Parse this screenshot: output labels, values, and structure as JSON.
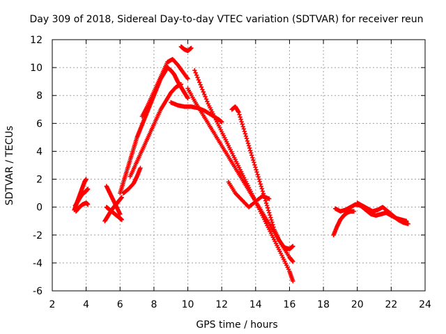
{
  "chart_data": {
    "type": "scatter",
    "title": "Day 309 of 2018, Sidereal Day-to-day VTEC variation (SDTVAR) for receiver reun",
    "xlabel": "GPS time / hours",
    "ylabel": "SDTVAR / TECUs",
    "xlim": [
      2,
      24
    ],
    "ylim": [
      -6,
      12
    ],
    "xticks": [
      "2",
      "4",
      "6",
      "8",
      "10",
      "12",
      "14",
      "16",
      "18",
      "20",
      "22",
      "24"
    ],
    "yticks": [
      "-6",
      "-4",
      "-2",
      "0",
      "2",
      "4",
      "6",
      "8",
      "10",
      "12"
    ],
    "grid": true,
    "marker": "+",
    "color": "#ff0000",
    "series": [
      {
        "name": "seg-a",
        "x": [
          3.3,
          3.45,
          3.6,
          3.75,
          3.9,
          4.0
        ],
        "y": [
          -0.2,
          0.3,
          0.8,
          1.3,
          1.8,
          2.0
        ]
      },
      {
        "name": "seg-b",
        "x": [
          3.35,
          3.55,
          3.75,
          3.95,
          4.1
        ],
        "y": [
          0.1,
          0.5,
          0.9,
          1.1,
          1.3
        ]
      },
      {
        "name": "seg-c",
        "x": [
          3.4,
          3.6,
          3.8,
          4.0,
          4.1
        ],
        "y": [
          -0.3,
          0.0,
          0.2,
          0.3,
          0.2
        ]
      },
      {
        "name": "seg-d",
        "x": [
          5.1,
          5.3,
          5.5,
          5.7,
          5.9,
          6.1
        ],
        "y": [
          -1.0,
          -0.6,
          -0.2,
          0.1,
          0.4,
          0.7
        ]
      },
      {
        "name": "seg-e",
        "x": [
          5.2,
          5.4,
          5.6,
          5.8,
          6.0
        ],
        "y": [
          1.5,
          1.0,
          0.5,
          0.0,
          -0.5
        ]
      },
      {
        "name": "seg-f",
        "x": [
          5.2,
          5.4,
          5.6,
          5.8,
          6.0,
          6.1
        ],
        "y": [
          0.0,
          -0.2,
          -0.4,
          -0.6,
          -0.8,
          -0.9
        ]
      },
      {
        "name": "seg-g",
        "x": [
          6.0,
          6.2,
          6.4,
          6.6,
          6.8,
          7.0,
          7.2,
          7.4,
          7.6,
          7.8,
          8.0,
          8.2,
          8.4,
          8.6,
          8.8,
          9.0,
          9.2,
          9.4,
          9.6,
          9.8,
          10.0
        ],
        "y": [
          1.0,
          1.8,
          2.6,
          3.4,
          4.2,
          5.0,
          5.6,
          6.2,
          6.8,
          7.4,
          8.0,
          8.6,
          9.2,
          9.6,
          10.0,
          9.8,
          9.5,
          9.0,
          8.6,
          8.2,
          7.8
        ]
      },
      {
        "name": "seg-h",
        "x": [
          6.2,
          6.5,
          6.8,
          7.0,
          7.2
        ],
        "y": [
          1.0,
          1.3,
          1.7,
          2.2,
          2.8
        ]
      },
      {
        "name": "seg-i",
        "x": [
          6.6,
          6.9,
          7.2,
          7.5,
          7.8,
          8.1,
          8.4,
          8.7,
          9.0,
          9.3,
          9.6
        ],
        "y": [
          2.2,
          3.0,
          3.8,
          4.6,
          5.4,
          6.2,
          7.0,
          7.6,
          8.2,
          8.6,
          8.8
        ]
      },
      {
        "name": "seg-j",
        "x": [
          7.3,
          7.6,
          7.9,
          8.2,
          8.5,
          8.8,
          9.1,
          9.4,
          9.7,
          10.0
        ],
        "y": [
          6.5,
          7.2,
          8.0,
          8.8,
          9.6,
          10.4,
          10.6,
          10.2,
          9.7,
          9.2
        ]
      },
      {
        "name": "seg-k",
        "x": [
          9.6,
          9.8,
          10.0,
          10.2
        ],
        "y": [
          11.5,
          11.3,
          11.2,
          11.4
        ]
      },
      {
        "name": "seg-l",
        "x": [
          9.0,
          9.4,
          9.8,
          10.2,
          10.6,
          11.0,
          11.4,
          11.8,
          12.0
        ],
        "y": [
          7.5,
          7.3,
          7.2,
          7.2,
          7.1,
          6.9,
          6.6,
          6.3,
          6.1
        ]
      },
      {
        "name": "seg-m",
        "x": [
          10.0,
          10.4,
          10.8,
          11.2,
          11.6,
          12.0,
          12.4,
          12.8,
          13.2,
          13.6,
          14.0,
          14.4,
          14.8,
          15.2,
          15.6,
          16.0,
          16.2
        ],
        "y": [
          8.5,
          7.6,
          6.8,
          6.0,
          5.2,
          4.4,
          3.6,
          2.8,
          2.0,
          1.2,
          0.4,
          -0.4,
          -1.2,
          -2.0,
          -2.8,
          -3.6,
          -3.9
        ]
      },
      {
        "name": "seg-n",
        "x": [
          10.4,
          10.8,
          11.2,
          11.6,
          12.0,
          12.4,
          12.8,
          13.2,
          13.6,
          14.0,
          14.4,
          14.8,
          15.2,
          15.6,
          16.0,
          16.2
        ],
        "y": [
          9.8,
          8.6,
          7.4,
          6.4,
          5.4,
          4.4,
          3.4,
          2.4,
          1.4,
          0.4,
          -0.6,
          -1.6,
          -2.6,
          -3.6,
          -4.6,
          -5.3
        ]
      },
      {
        "name": "seg-o",
        "x": [
          12.6,
          12.8,
          13.0,
          13.3,
          13.6,
          13.9,
          14.2,
          14.5,
          14.8,
          15.1,
          15.4,
          15.7,
          16.0,
          16.2
        ],
        "y": [
          7.0,
          7.2,
          6.8,
          5.6,
          4.4,
          3.2,
          2.0,
          0.8,
          -0.4,
          -1.6,
          -2.4,
          -2.9,
          -3.0,
          -2.8
        ]
      },
      {
        "name": "seg-p",
        "x": [
          12.4,
          12.8,
          13.2,
          13.6,
          14.0,
          14.4,
          14.8
        ],
        "y": [
          1.8,
          1.0,
          0.5,
          0.0,
          0.4,
          0.8,
          0.6
        ]
      },
      {
        "name": "seg-q",
        "x": [
          18.6,
          18.8,
          19.0,
          19.2,
          19.4,
          19.6,
          19.8
        ],
        "y": [
          -2.0,
          -1.4,
          -0.9,
          -0.6,
          -0.4,
          -0.3,
          -0.3
        ]
      },
      {
        "name": "seg-r",
        "x": [
          18.7,
          19.0,
          19.3,
          19.6,
          19.9,
          20.2,
          20.5,
          20.8,
          21.1,
          21.4,
          21.7,
          22.0,
          22.3,
          22.6,
          22.9
        ],
        "y": [
          -0.1,
          -0.3,
          -0.2,
          0.0,
          0.2,
          0.1,
          -0.2,
          -0.5,
          -0.6,
          -0.5,
          -0.4,
          -0.6,
          -0.8,
          -0.9,
          -1.0
        ]
      },
      {
        "name": "seg-s",
        "x": [
          20.0,
          20.3,
          20.6,
          20.9,
          21.2,
          21.5,
          21.8,
          22.1,
          22.4,
          22.7,
          23.0
        ],
        "y": [
          0.3,
          0.1,
          -0.1,
          -0.3,
          -0.2,
          0.0,
          -0.3,
          -0.6,
          -0.9,
          -1.1,
          -1.2
        ]
      }
    ]
  }
}
